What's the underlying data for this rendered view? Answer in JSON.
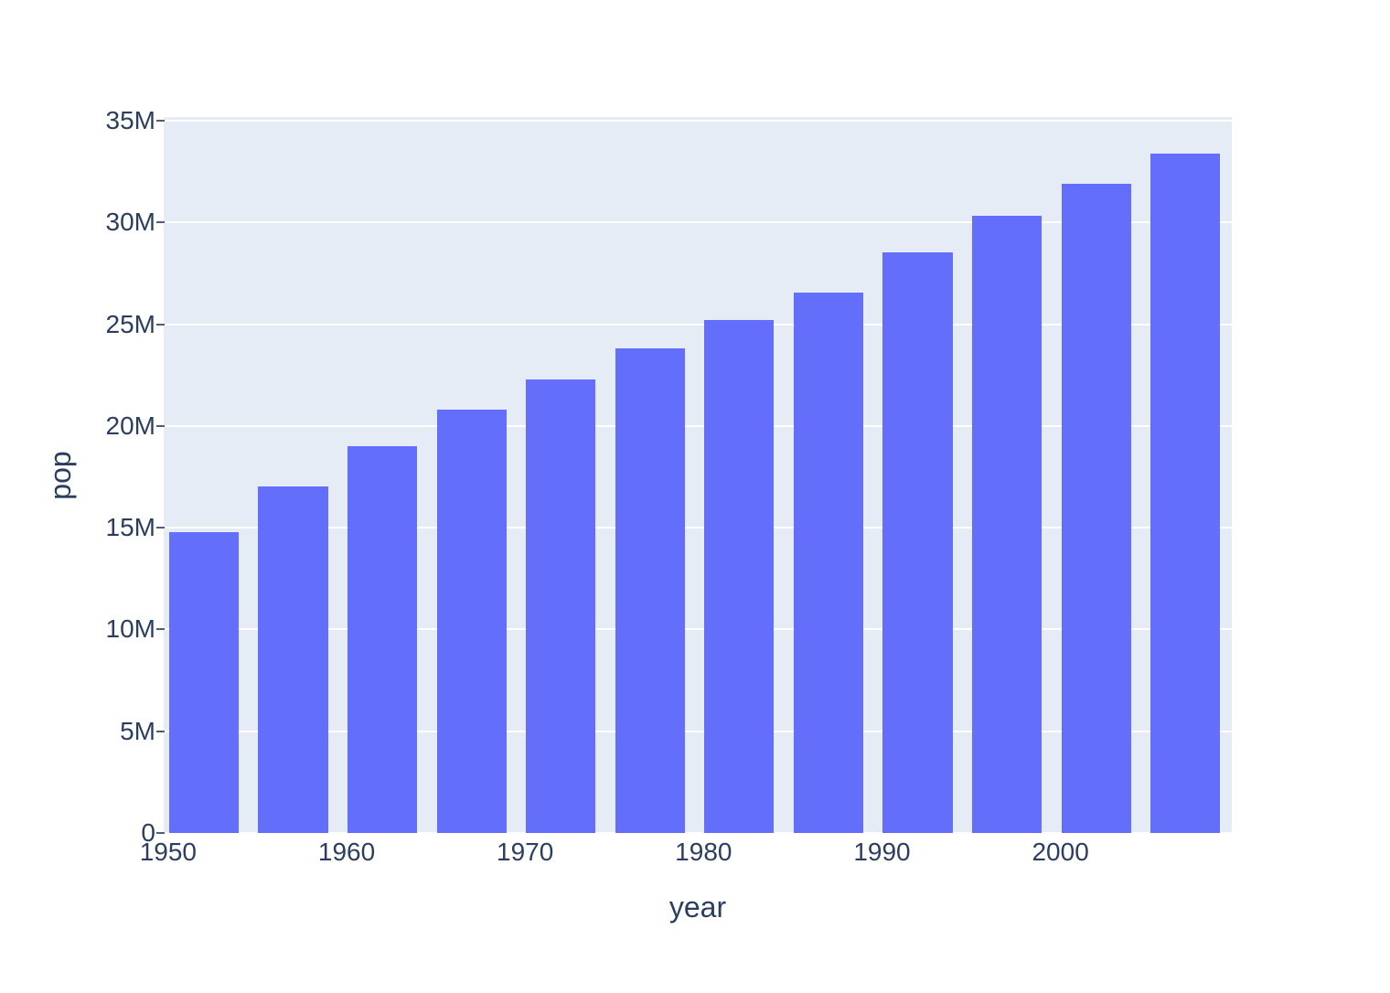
{
  "chart_data": {
    "type": "bar",
    "title": "",
    "xlabel": "year",
    "ylabel": "pop",
    "x": [
      1952,
      1957,
      1962,
      1967,
      1972,
      1977,
      1982,
      1987,
      1992,
      1997,
      2002,
      2007
    ],
    "series": [
      {
        "name": "pop",
        "values": [
          14785584,
          17010154,
          18985849,
          20819767,
          22284500,
          23796400,
          25201900,
          26549700,
          28523502,
          30305843,
          31902268,
          33390141
        ]
      }
    ],
    "xlim": [
      1949.75,
      2009.6
    ],
    "ylim": [
      0,
      35180000
    ],
    "bargap": 0.22,
    "bar_slot_years": 5,
    "grid": true,
    "legend": "none",
    "x_ticks": [
      {
        "value": 1950,
        "label": "1950"
      },
      {
        "value": 1960,
        "label": "1960"
      },
      {
        "value": 1970,
        "label": "1970"
      },
      {
        "value": 1980,
        "label": "1980"
      },
      {
        "value": 1990,
        "label": "1990"
      },
      {
        "value": 2000,
        "label": "2000"
      }
    ],
    "y_ticks": [
      {
        "value": 0,
        "label": "0"
      },
      {
        "value": 5000000,
        "label": "5M"
      },
      {
        "value": 10000000,
        "label": "10M"
      },
      {
        "value": 15000000,
        "label": "15M"
      },
      {
        "value": 20000000,
        "label": "20M"
      },
      {
        "value": 25000000,
        "label": "25M"
      },
      {
        "value": 30000000,
        "label": "30M"
      },
      {
        "value": 35000000,
        "label": "35M"
      }
    ],
    "colors": {
      "bar": "#636efa",
      "plot_background": "#e5ecf6",
      "gridline": "#ffffff",
      "text": "#2a3f5f",
      "page_background": "#ffffff",
      "tick_mark": "#4a5e7d"
    }
  }
}
